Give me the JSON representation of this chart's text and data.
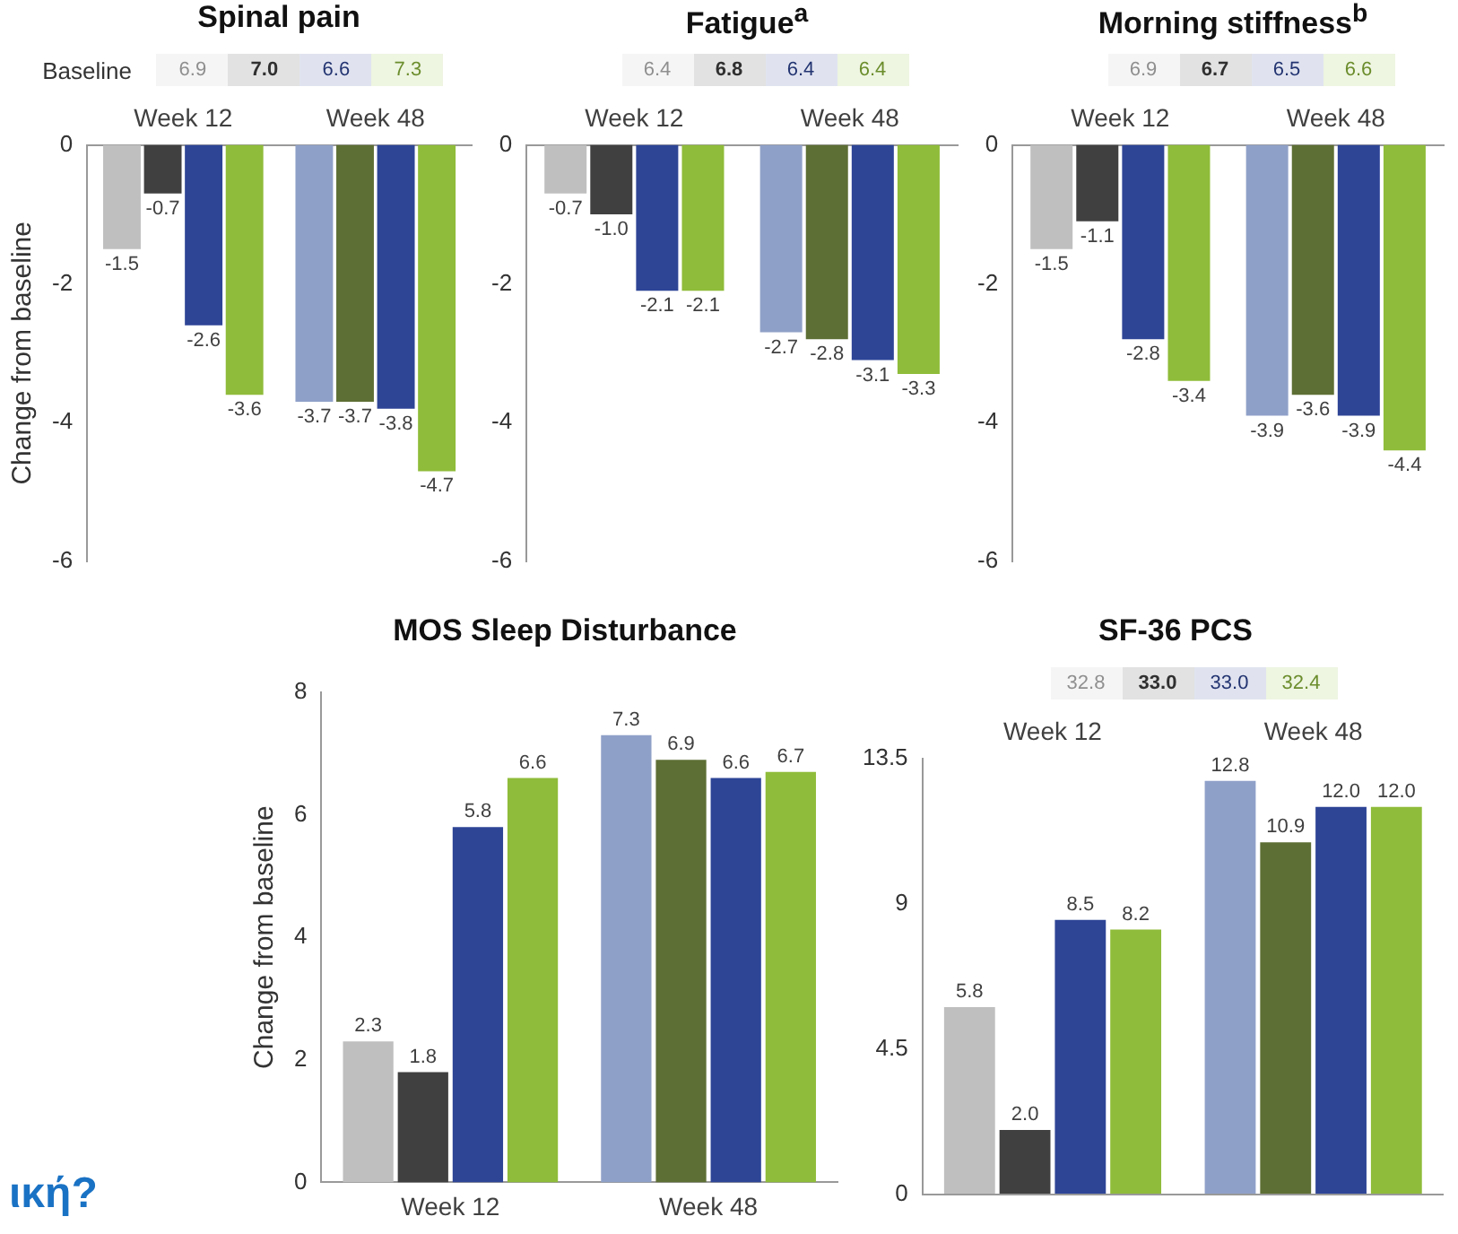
{
  "chart_data": [
    {
      "type": "bar",
      "title": "Spinal pain",
      "ylabel": "Change from baseline",
      "categories": [
        "Week 12",
        "Week 48"
      ],
      "ylim": [
        -6,
        0
      ],
      "yticks": [
        0,
        -2,
        -4,
        -6
      ],
      "grid": false,
      "legend": false,
      "annotations": [
        "Baseline",
        "6.9",
        "7.0",
        "6.6",
        "7.3"
      ],
      "series": [
        {
          "colors": [
            "#bfbfbf",
            "#8fa0c8"
          ],
          "values": [
            -1.5,
            -3.7
          ],
          "value_labels": [
            "-1.5",
            "-3.7"
          ]
        },
        {
          "colors": [
            "#404040",
            "#5e6f35"
          ],
          "values": [
            -0.7,
            -3.7
          ],
          "value_labels": [
            "-0.7",
            "-3.7"
          ]
        },
        {
          "color": "#2e4596",
          "values": [
            -2.6,
            -3.8
          ],
          "value_labels": [
            "-2.6",
            "-3.8"
          ]
        },
        {
          "color": "#8fbc3a",
          "values": [
            -3.6,
            -4.7
          ],
          "value_labels": [
            "-3.6",
            "-4.7"
          ]
        }
      ]
    },
    {
      "type": "bar",
      "title": "Fatigue$^{a}$",
      "categories": [
        "Week 12",
        "Week 48"
      ],
      "ylim": [
        -6,
        0
      ],
      "yticks": [
        0,
        -2,
        -4,
        -6
      ],
      "grid": false,
      "legend": false,
      "annotations": [
        "6.4",
        "6.8",
        "6.4",
        "6.4"
      ],
      "series": [
        {
          "colors": [
            "#bfbfbf",
            "#8fa0c8"
          ],
          "values": [
            -0.7,
            -2.7
          ],
          "value_labels": [
            "-0.7",
            "-2.7"
          ]
        },
        {
          "colors": [
            "#404040",
            "#5e6f35"
          ],
          "values": [
            -1,
            -2.8
          ],
          "value_labels": [
            "-1.0",
            "-2.8"
          ]
        },
        {
          "color": "#2e4596",
          "values": [
            -2.1,
            -3.1
          ],
          "value_labels": [
            "-2.1",
            "-3.1"
          ]
        },
        {
          "color": "#8fbc3a",
          "values": [
            -2.1,
            -3.3
          ],
          "value_labels": [
            "-2.1",
            "-3.3"
          ]
        }
      ]
    },
    {
      "type": "bar",
      "title": "Morning stiffness$^{b}$",
      "categories": [
        "Week 12",
        "Week 48"
      ],
      "ylim": [
        -6,
        0
      ],
      "yticks": [
        0,
        -2,
        -4,
        -6
      ],
      "grid": false,
      "legend": false,
      "annotations": [
        "6.9",
        "6.7",
        "6.5",
        "6.6"
      ],
      "series": [
        {
          "colors": [
            "#bfbfbf",
            "#8fa0c8"
          ],
          "values": [
            -1.5,
            -3.9
          ],
          "value_labels": [
            "-1.5",
            "-3.9"
          ]
        },
        {
          "colors": [
            "#404040",
            "#5e6f35"
          ],
          "values": [
            -1.1,
            -3.6
          ],
          "value_labels": [
            "-1.1",
            "-3.6"
          ]
        },
        {
          "color": "#2e4596",
          "values": [
            -2.8,
            -3.9
          ],
          "value_labels": [
            "-2.8",
            "-3.9"
          ]
        },
        {
          "color": "#8fbc3a",
          "values": [
            -3.4,
            -4.4
          ],
          "value_labels": [
            "-3.4",
            "-4.4"
          ]
        }
      ]
    },
    {
      "type": "bar",
      "title": "MOS Sleep Disturbance",
      "ylabel": "Change from baseline",
      "categories": [
        "Week 12",
        "Week 48"
      ],
      "ylim": [
        0,
        8
      ],
      "yticks": [
        0,
        2,
        4,
        6,
        8
      ],
      "grid": false,
      "legend": false,
      "annotations": [
        "ική?"
      ],
      "series": [
        {
          "colors": [
            "#bfbfbf",
            "#8fa0c8"
          ],
          "values": [
            2.3,
            7.3
          ],
          "value_labels": [
            "2.3",
            "7.3"
          ]
        },
        {
          "colors": [
            "#404040",
            "#5e6f35"
          ],
          "values": [
            1.8,
            6.9
          ],
          "value_labels": [
            "1.8",
            "6.9"
          ]
        },
        {
          "color": "#2e4596",
          "values": [
            5.8,
            6.6
          ],
          "value_labels": [
            "5.8",
            "6.6"
          ]
        },
        {
          "color": "#8fbc3a",
          "values": [
            6.6,
            6.7
          ],
          "value_labels": [
            "6.6",
            "6.7"
          ]
        }
      ]
    },
    {
      "type": "bar",
      "title": "SF-36 PCS",
      "categories": [
        "Week 12",
        "Week 48"
      ],
      "ylim": [
        0,
        13.5
      ],
      "yticks": [
        0,
        4.5,
        9,
        13.5
      ],
      "grid": false,
      "legend": false,
      "annotations": [
        "32.8",
        "33.0",
        "33.0",
        "32.4"
      ],
      "series": [
        {
          "colors": [
            "#bfbfbf",
            "#8fa0c8"
          ],
          "values": [
            5.8,
            12.8
          ],
          "value_labels": [
            "5.8",
            "12.8"
          ]
        },
        {
          "colors": [
            "#404040",
            "#5e6f35"
          ],
          "values": [
            2,
            10.9
          ],
          "value_labels": [
            "2.0",
            "10.9"
          ]
        },
        {
          "color": "#2e4596",
          "values": [
            8.5,
            12
          ],
          "value_labels": [
            "8.5",
            "12.0"
          ]
        },
        {
          "color": "#8fbc3a",
          "values": [
            8.2,
            12
          ],
          "value_labels": [
            "8.2",
            "12.0"
          ]
        }
      ]
    }
  ]
}
